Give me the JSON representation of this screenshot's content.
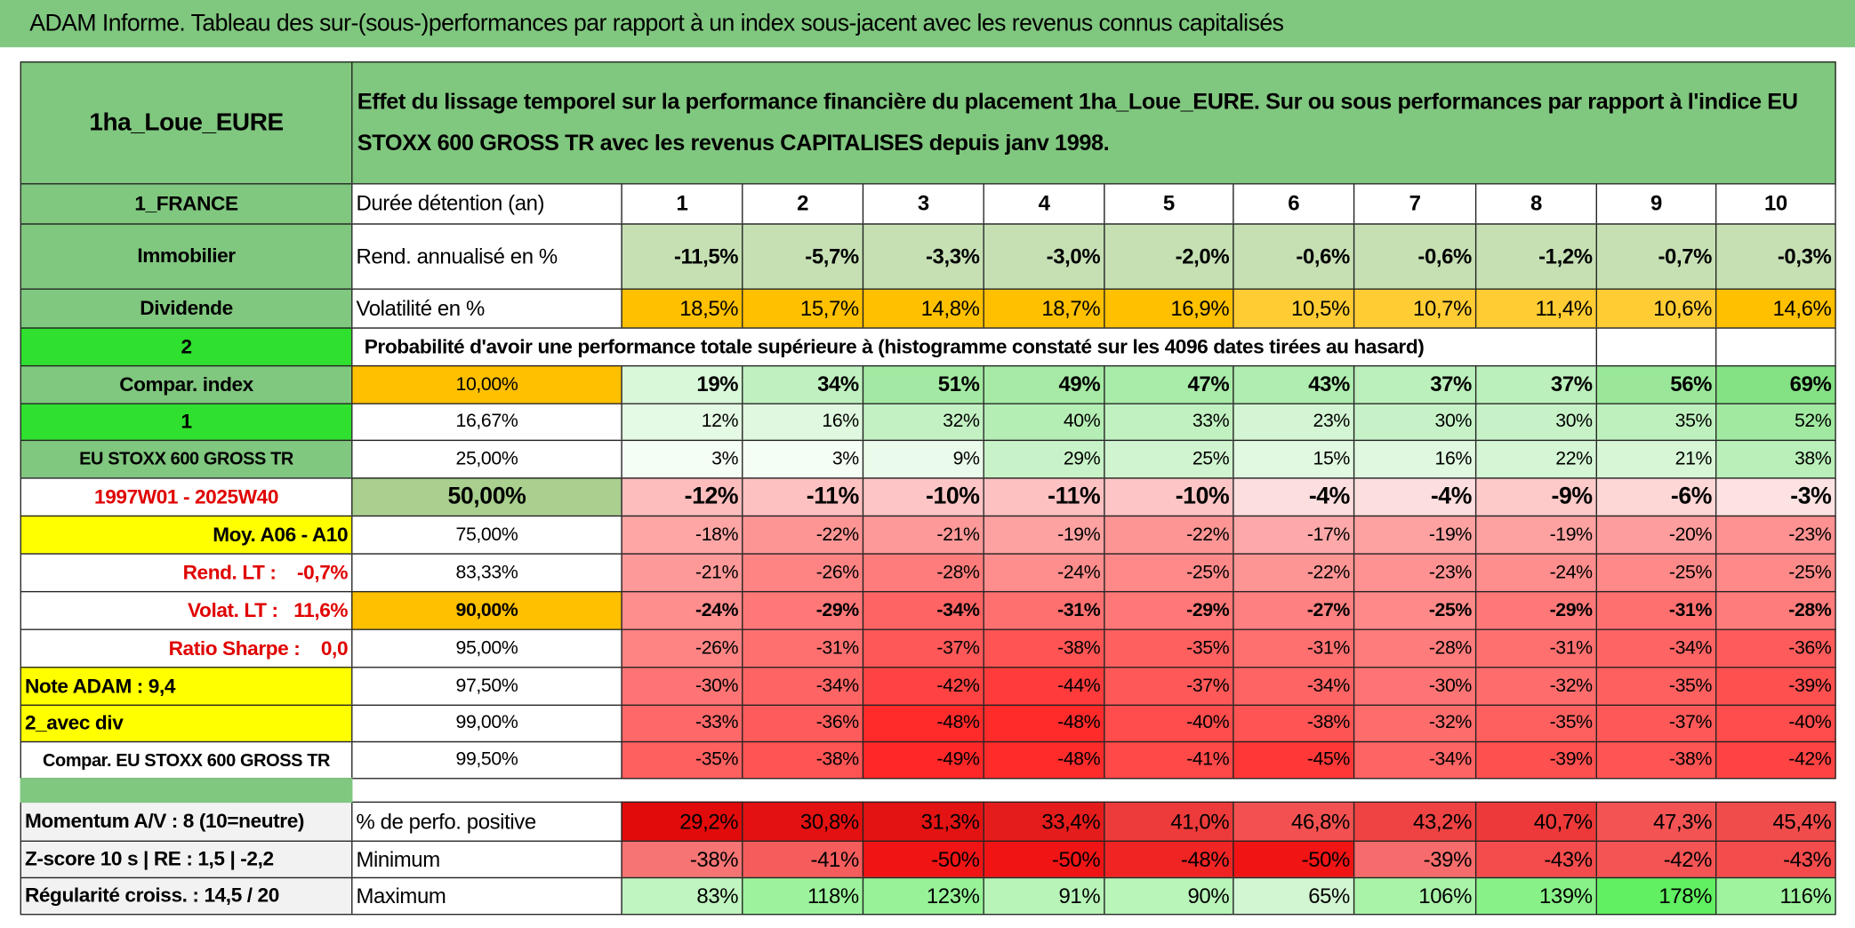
{
  "title": "ADAM Informe. Tableau des sur-(sous-)performances par rapport à un index sous-jacent avec les revenus connus capitalisés",
  "header": {
    "fund": "1ha_Loue_EURE",
    "description": "Effet du lissage temporel sur la performance financière du placement 1ha_Loue_EURE. Sur ou sous performances par rapport à l'indice EU STOXX 600 GROSS TR avec les revenus CAPITALISES depuis janv 1998."
  },
  "table": {
    "rows": [
      {
        "label": "1_FRANCE",
        "header": "Durée détention (an)",
        "cells": [
          1,
          2,
          3,
          4,
          5,
          6,
          7,
          8,
          9,
          10
        ]
      },
      {
        "label": "Immobilier",
        "header": "Rend. annualisé en %",
        "cells": [
          "-11,5%",
          "-5,7%",
          "-3,3%",
          "-3,0%",
          "-2,0%",
          "-0,6%",
          "-0,6%",
          "-1,2%",
          "-0,7%",
          "-0,3%"
        ]
      },
      {
        "label": "Dividende",
        "header": "Volatilité en %",
        "cells": [
          "18,5%",
          "15,7%",
          "14,8%",
          "18,7%",
          "16,9%",
          "10,5%",
          "10,7%",
          "11,4%",
          "10,6%",
          "14,6%"
        ]
      },
      {
        "label": "2",
        "header": "Probabilité d'avoir une performance totale supérieure à (histogramme constaté sur les 4096 dates tirées au hasard)",
        "cells": []
      },
      {
        "label": "Compar. index",
        "header": "10,00%",
        "cells": [
          "19%",
          "34%",
          "51%",
          "49%",
          "47%",
          "43%",
          "37%",
          "37%",
          "56%",
          "69%"
        ]
      },
      {
        "label": "1",
        "header": "16,67%",
        "cells": [
          "12%",
          "16%",
          "32%",
          "40%",
          "33%",
          "23%",
          "30%",
          "30%",
          "35%",
          "52%"
        ]
      },
      {
        "label": "EU STOXX 600 GROSS TR",
        "header": "25,00%",
        "cells": [
          "3%",
          "3%",
          "9%",
          "29%",
          "25%",
          "15%",
          "16%",
          "22%",
          "21%",
          "38%"
        ]
      },
      {
        "label": "1997W01 - 2025W40",
        "header": "50,00%",
        "cells": [
          "-12%",
          "-11%",
          "-10%",
          "-11%",
          "-10%",
          "-4%",
          "-4%",
          "-9%",
          "-6%",
          "-3%"
        ]
      },
      {
        "label": "Moy. A06 - A10",
        "header": "75,00%",
        "cells": [
          "-18%",
          "-22%",
          "-21%",
          "-19%",
          "-22%",
          "-17%",
          "-19%",
          "-19%",
          "-20%",
          "-23%"
        ]
      },
      {
        "label": "Rend. LT :    -0,7%",
        "header": "83,33%",
        "cells": [
          "-21%",
          "-26%",
          "-28%",
          "-24%",
          "-25%",
          "-22%",
          "-23%",
          "-24%",
          "-25%",
          "-25%"
        ]
      },
      {
        "label": "Volat. LT :   11,6%",
        "header": "90,00%",
        "cells": [
          "-24%",
          "-29%",
          "-34%",
          "-31%",
          "-29%",
          "-27%",
          "-25%",
          "-29%",
          "-31%",
          "-28%"
        ]
      },
      {
        "label": "Ratio Sharpe :    0,0",
        "header": "95,00%",
        "cells": [
          "-26%",
          "-31%",
          "-37%",
          "-38%",
          "-35%",
          "-31%",
          "-28%",
          "-31%",
          "-34%",
          "-36%"
        ]
      },
      {
        "label": "Note ADAM : 9,4",
        "header": "97,50%",
        "cells": [
          "-30%",
          "-34%",
          "-42%",
          "-44%",
          "-37%",
          "-34%",
          "-30%",
          "-32%",
          "-35%",
          "-39%"
        ]
      },
      {
        "label": "2_avec div",
        "header": "99,00%",
        "cells": [
          "-33%",
          "-36%",
          "-48%",
          "-48%",
          "-40%",
          "-38%",
          "-32%",
          "-35%",
          "-37%",
          "-40%"
        ]
      },
      {
        "label": "Compar. EU STOXX 600 GROSS TR",
        "header": "99,50%",
        "cells": [
          "-35%",
          "-38%",
          "-49%",
          "-48%",
          "-41%",
          "-45%",
          "-34%",
          "-39%",
          "-38%",
          "-42%"
        ]
      },
      {
        "label": "Momentum A/V : 8 (10=neutre)",
        "header": "% de perfo. positive",
        "cells": [
          "29,2%",
          "30,8%",
          "31,3%",
          "33,4%",
          "41,0%",
          "46,8%",
          "43,2%",
          "40,7%",
          "47,3%",
          "45,4%"
        ]
      },
      {
        "label": "Z-score 10 s | RE : 1,5 | -2,2",
        "header": "Minimum",
        "cells": [
          "-38%",
          "-41%",
          "-50%",
          "-50%",
          "-48%",
          "-50%",
          "-39%",
          "-43%",
          "-42%",
          "-43%"
        ]
      },
      {
        "label": "Régularité croiss. : 14,5 / 20",
        "header": "Maximum",
        "cells": [
          "83%",
          "118%",
          "123%",
          "91%",
          "90%",
          "65%",
          "106%",
          "139%",
          "178%",
          "116%"
        ]
      }
    ]
  }
}
